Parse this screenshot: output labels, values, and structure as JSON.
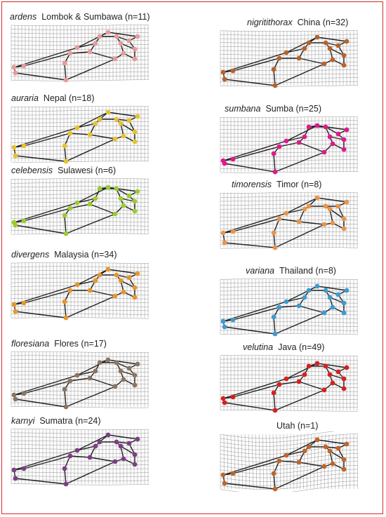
{
  "panels": [
    {
      "species": "ardens",
      "location": "Lombok & Sumbawa (n=11)",
      "color": "#e89a9c"
    },
    {
      "species": "auraria",
      "location": "Nepal (n=18)",
      "color": "#e8c22a"
    },
    {
      "species": "celebensis",
      "location": "Sulawesi (n=6)",
      "color": "#9acd2c"
    },
    {
      "species": "divergens",
      "location": "Malaysia (n=34)",
      "color": "#e8962a"
    },
    {
      "species": "floresiana",
      "location": "Flores (n=17)",
      "color": "#8c7460"
    },
    {
      "species": "karnyi",
      "location": "Sumatra (n=24)",
      "color": "#7e3e86"
    },
    {
      "species": "nigritithorax",
      "location": "China (n=32)",
      "color": "#b8622a"
    },
    {
      "species": "sumbana",
      "location": "Sumba (n=25)",
      "color": "#e0198c"
    },
    {
      "species": "timorensis",
      "location": "Timor (n=8)",
      "color": "#e8944a"
    },
    {
      "species": "variana",
      "location": "Thailand (n=8)",
      "color": "#3d9bd0"
    },
    {
      "species": "velutina",
      "location": "Java (n=49)",
      "color": "#d62020"
    },
    {
      "species": "",
      "location": "Utah (n=1)",
      "color": "#c0652a"
    }
  ]
}
